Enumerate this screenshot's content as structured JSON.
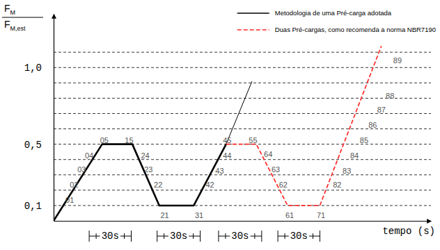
{
  "chart_data": {
    "type": "line",
    "ylabel": {
      "numerator": {
        "base": "F",
        "sub": "M"
      },
      "denominator": {
        "base": "F",
        "sub": "M,est"
      }
    },
    "xlabel": "tempo (s)",
    "xlim": [
      0,
      350
    ],
    "ylim": [
      0,
      1.35
    ],
    "yticks": [
      {
        "value": 0.1,
        "label": "0,1"
      },
      {
        "value": 0.5,
        "label": "0,5"
      },
      {
        "value": 1,
        "label": "1,0"
      }
    ],
    "gridlines": [
      0.1,
      0.2,
      0.3,
      0.4,
      0.5,
      0.6,
      0.7,
      0.8,
      0.9,
      1,
      1.1
    ],
    "grid": true,
    "tick_labels": "y",
    "legend": "top-right",
    "series": [
      {
        "name": "Metodologia de uma Pré-carga adotada",
        "color": "#000000",
        "line_style": "solid",
        "x": [
          0,
          45,
          73,
          98,
          130,
          160
        ],
        "values": [
          0,
          0.5,
          0.5,
          0.1,
          0.1,
          0.5
        ]
      },
      {
        "color": "#000000",
        "line_style": "thin",
        "x": [
          160,
          184
        ],
        "values": [
          0.5,
          0.91
        ]
      },
      {
        "name": "Duas Pré-cargas, como recomenda a norma NBR7190",
        "color": "#ff2a2a",
        "line_style": "dashed",
        "x": [
          160,
          188,
          217,
          247,
          304
        ],
        "values": [
          0.5,
          0.5,
          0.1,
          0.1,
          1.14
        ]
      }
    ],
    "annotations": [
      {
        "text": "01",
        "x": 15,
        "y": 0.13
      },
      {
        "text": "02",
        "x": 19,
        "y": 0.23
      },
      {
        "text": "03",
        "x": 26,
        "y": 0.33
      },
      {
        "text": "04",
        "x": 33,
        "y": 0.42
      },
      {
        "text": "05",
        "x": 47,
        "y": 0.52
      },
      {
        "text": "15",
        "x": 70,
        "y": 0.52
      },
      {
        "text": "24",
        "x": 85,
        "y": 0.42
      },
      {
        "text": "23",
        "x": 88,
        "y": 0.33
      },
      {
        "text": "22",
        "x": 97,
        "y": 0.23
      },
      {
        "text": "21",
        "x": 103,
        "y": 0.03
      },
      {
        "text": "31",
        "x": 135,
        "y": 0.03
      },
      {
        "text": "42",
        "x": 145,
        "y": 0.23
      },
      {
        "text": "43",
        "x": 154,
        "y": 0.32
      },
      {
        "text": "44",
        "x": 161,
        "y": 0.42
      },
      {
        "text": "45",
        "x": 161,
        "y": 0.52
      },
      {
        "text": "55",
        "x": 185,
        "y": 0.52
      },
      {
        "text": "64",
        "x": 199,
        "y": 0.43
      },
      {
        "text": "63",
        "x": 206,
        "y": 0.33
      },
      {
        "text": "62",
        "x": 213,
        "y": 0.23
      },
      {
        "text": "61",
        "x": 219,
        "y": 0.03
      },
      {
        "text": "71",
        "x": 248,
        "y": 0.03
      },
      {
        "text": "82",
        "x": 263,
        "y": 0.23
      },
      {
        "text": "83",
        "x": 272,
        "y": 0.32
      },
      {
        "text": "84",
        "x": 279,
        "y": 0.42
      },
      {
        "text": "85",
        "x": 288,
        "y": 0.52
      },
      {
        "text": "86",
        "x": 296,
        "y": 0.62
      },
      {
        "text": "87",
        "x": 304,
        "y": 0.72
      },
      {
        "text": "88",
        "x": 312,
        "y": 0.81
      },
      {
        "text": "89",
        "x": 319,
        "y": 1.04
      }
    ],
    "intervals": [
      {
        "label": "30s",
        "x": [
          33,
          72
        ]
      },
      {
        "label": "30s",
        "x": [
          96,
          136
        ]
      },
      {
        "label": "30s",
        "x": [
          153,
          193
        ]
      },
      {
        "label": "30s",
        "x": [
          208,
          247
        ]
      }
    ]
  }
}
